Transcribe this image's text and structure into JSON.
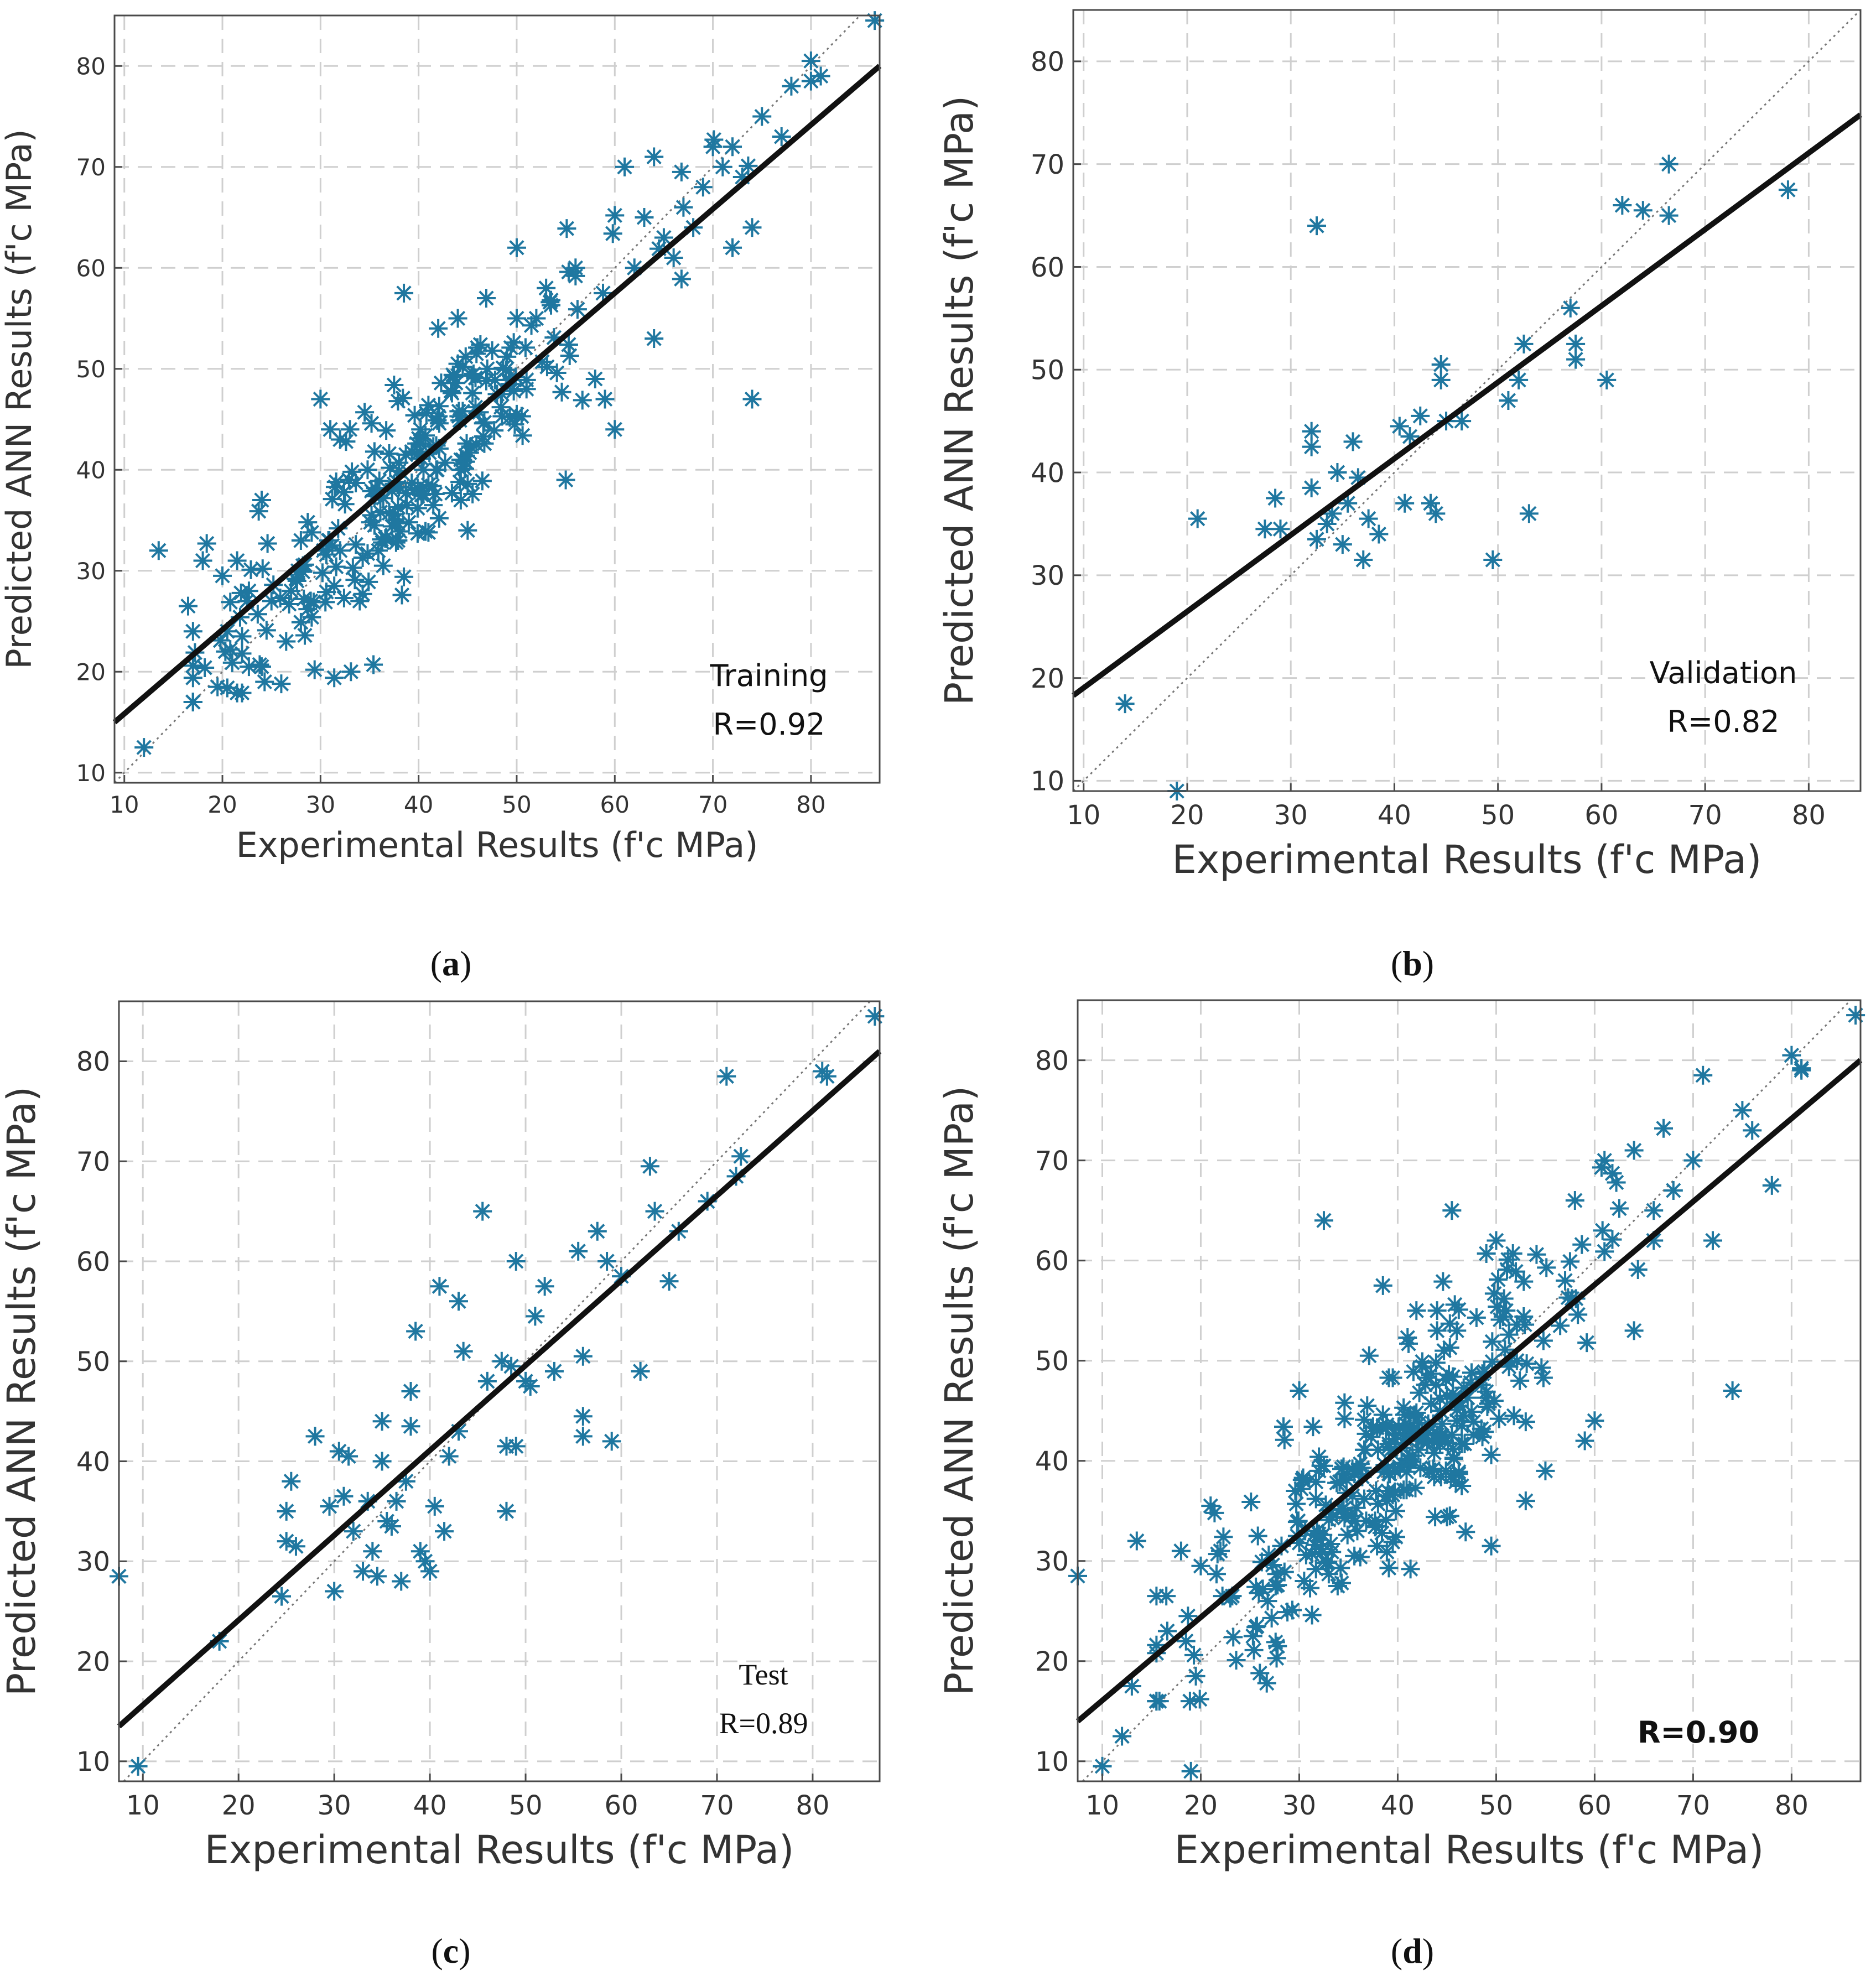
{
  "colors": {
    "marker": "#1f77a0",
    "fit": "#111111",
    "grid": "#cfcfcf",
    "frame": "#4a4a4a"
  },
  "chart_data": [
    {
      "type": "scatter",
      "caption": "a",
      "title": "",
      "xlabel": "Experimental Results (f'c MPa)",
      "ylabel": "Predicted ANN Results (f'c MPa)",
      "xlim": [
        9,
        87
      ],
      "ylim": [
        9,
        85
      ],
      "xticks": [
        10,
        20,
        30,
        40,
        50,
        60,
        70,
        80
      ],
      "yticks": [
        10,
        20,
        30,
        40,
        50,
        60,
        70,
        80
      ],
      "grid": true,
      "annotation": [
        "Training",
        "R=0.92"
      ],
      "annotation_bold": false,
      "fit_line": {
        "x": [
          9,
          87
        ],
        "y": [
          15,
          80
        ]
      },
      "identity_line": true,
      "seed": 11,
      "n_points": 260,
      "x_center": 40,
      "x_sd": 12,
      "scatter_sd": 4.8,
      "points": [
        [
          12,
          12.5
        ],
        [
          13.5,
          32
        ],
        [
          16.5,
          26.5
        ],
        [
          18,
          31
        ],
        [
          19.5,
          18.5
        ],
        [
          20,
          29.5
        ],
        [
          20.5,
          24
        ],
        [
          21.5,
          31
        ],
        [
          22.5,
          27
        ],
        [
          24,
          37
        ],
        [
          25,
          27
        ],
        [
          26,
          18.8
        ],
        [
          27,
          28
        ],
        [
          28,
          33
        ],
        [
          29,
          27
        ],
        [
          30,
          47
        ],
        [
          31,
          44
        ],
        [
          32,
          43
        ],
        [
          33,
          44
        ],
        [
          34,
          27
        ],
        [
          38.5,
          57.5
        ],
        [
          42,
          54
        ],
        [
          44,
          55
        ],
        [
          48,
          47.5
        ],
        [
          50,
          62
        ],
        [
          50,
          55
        ],
        [
          55,
          39
        ],
        [
          58,
          49
        ],
        [
          59,
          47
        ],
        [
          60,
          44
        ],
        [
          61,
          70
        ],
        [
          63,
          65
        ],
        [
          64,
          71
        ],
        [
          64,
          53
        ],
        [
          66,
          61
        ],
        [
          68,
          64
        ],
        [
          70,
          72
        ],
        [
          72,
          62
        ],
        [
          72,
          72
        ],
        [
          74,
          47
        ],
        [
          74,
          64
        ],
        [
          75,
          75
        ],
        [
          77,
          73
        ],
        [
          78,
          78
        ],
        [
          80,
          80.5
        ],
        [
          80,
          78.5
        ],
        [
          81,
          79
        ],
        [
          86.5,
          84.5
        ],
        [
          51,
          48
        ],
        [
          56,
          60
        ],
        [
          45,
          34
        ],
        [
          47,
          50
        ],
        [
          52,
          55
        ],
        [
          53,
          58
        ],
        [
          62,
          60
        ],
        [
          65,
          63
        ],
        [
          67,
          66
        ],
        [
          69,
          68
        ],
        [
          71,
          70
        ],
        [
          73,
          69
        ]
      ]
    },
    {
      "type": "scatter",
      "caption": "b",
      "title": "",
      "xlabel": "Experimental Results (f'c MPa)",
      "ylabel": "Predicted ANN Results (f'c MPa)",
      "xlim": [
        9,
        85
      ],
      "ylim": [
        9,
        85
      ],
      "xticks": [
        10,
        20,
        30,
        40,
        50,
        60,
        70,
        80
      ],
      "yticks": [
        10,
        20,
        30,
        40,
        50,
        60,
        70,
        80
      ],
      "grid": true,
      "annotation": [
        "Validation",
        "R=0.82"
      ],
      "annotation_bold": false,
      "fit_line": {
        "x": [
          9,
          85
        ],
        "y": [
          18.3,
          74.8
        ]
      },
      "identity_line": true,
      "seed": 0,
      "n_points": 0,
      "points": [
        [
          14,
          17.5
        ],
        [
          19,
          9
        ],
        [
          21,
          35.5
        ],
        [
          27.5,
          34.5
        ],
        [
          28.5,
          37.5
        ],
        [
          29,
          34.5
        ],
        [
          32,
          44
        ],
        [
          32,
          42.5
        ],
        [
          32,
          38.5
        ],
        [
          32.5,
          64
        ],
        [
          32.5,
          33.5
        ],
        [
          33.5,
          35
        ],
        [
          34,
          36
        ],
        [
          34.5,
          40
        ],
        [
          35,
          33
        ],
        [
          35.5,
          37
        ],
        [
          36,
          43
        ],
        [
          36.5,
          39.5
        ],
        [
          37,
          31.5
        ],
        [
          37.5,
          35.5
        ],
        [
          38.5,
          34
        ],
        [
          40.5,
          44.5
        ],
        [
          41,
          37
        ],
        [
          41.5,
          43.5
        ],
        [
          42.5,
          45.5
        ],
        [
          43.5,
          37
        ],
        [
          44,
          36
        ],
        [
          44.5,
          49
        ],
        [
          44.5,
          50.5
        ],
        [
          45,
          45
        ],
        [
          46.5,
          45
        ],
        [
          49.5,
          31.5
        ],
        [
          51,
          47
        ],
        [
          52,
          49
        ],
        [
          52.5,
          52.5
        ],
        [
          53,
          36
        ],
        [
          57,
          56
        ],
        [
          57.5,
          51
        ],
        [
          57.5,
          52.5
        ],
        [
          60.5,
          49
        ],
        [
          62,
          66
        ],
        [
          64,
          65.5
        ],
        [
          66.5,
          65
        ],
        [
          66.5,
          70
        ],
        [
          78,
          67.5
        ]
      ]
    },
    {
      "type": "scatter",
      "caption": "c",
      "title": "",
      "xlabel": "Experimental Results (f'c MPa)",
      "ylabel": "Predicted ANN Results (f'c MPa)",
      "xlim": [
        7.5,
        87
      ],
      "ylim": [
        8,
        86
      ],
      "xticks": [
        10,
        20,
        30,
        40,
        50,
        60,
        70,
        80
      ],
      "yticks": [
        10,
        20,
        30,
        40,
        50,
        60,
        70,
        80
      ],
      "grid": true,
      "annotation": [
        "Test",
        "R=0.89"
      ],
      "annotation_bold": false,
      "fit_line": {
        "x": [
          7.5,
          87
        ],
        "y": [
          13.5,
          81
        ]
      },
      "identity_line": true,
      "seed": 0,
      "n_points": 0,
      "points": [
        [
          7.5,
          28.5
        ],
        [
          9.5,
          9.5
        ],
        [
          18,
          22
        ],
        [
          24.5,
          26.5
        ],
        [
          25,
          32
        ],
        [
          25,
          35
        ],
        [
          25.5,
          38
        ],
        [
          26,
          31.5
        ],
        [
          28,
          42.5
        ],
        [
          29.5,
          35.5
        ],
        [
          30,
          27
        ],
        [
          30.5,
          41
        ],
        [
          31,
          36.5
        ],
        [
          31.5,
          40.5
        ],
        [
          32,
          33
        ],
        [
          33,
          29
        ],
        [
          33.5,
          36
        ],
        [
          34,
          31
        ],
        [
          34.5,
          28.5
        ],
        [
          35,
          44
        ],
        [
          35,
          40
        ],
        [
          35.5,
          34
        ],
        [
          36,
          33.5
        ],
        [
          36.5,
          36
        ],
        [
          37,
          28
        ],
        [
          37.5,
          38
        ],
        [
          38,
          47
        ],
        [
          38,
          43.5
        ],
        [
          38.5,
          53
        ],
        [
          39,
          31
        ],
        [
          39.5,
          30
        ],
        [
          40,
          29
        ],
        [
          40.5,
          35.5
        ],
        [
          41,
          57.5
        ],
        [
          41.5,
          33
        ],
        [
          42,
          40.5
        ],
        [
          43,
          56
        ],
        [
          43,
          43
        ],
        [
          43.5,
          51
        ],
        [
          45.5,
          65
        ],
        [
          46,
          48
        ],
        [
          47.5,
          50
        ],
        [
          48,
          35
        ],
        [
          48,
          41.5
        ],
        [
          48.5,
          49.5
        ],
        [
          49,
          60
        ],
        [
          49,
          41.5
        ],
        [
          50,
          48
        ],
        [
          50.5,
          47.5
        ],
        [
          51,
          54.5
        ],
        [
          52,
          57.5
        ],
        [
          53,
          49
        ],
        [
          55.5,
          61
        ],
        [
          56,
          50.5
        ],
        [
          56,
          44.5
        ],
        [
          56,
          42.5
        ],
        [
          57.5,
          63
        ],
        [
          58.5,
          60
        ],
        [
          59,
          42
        ],
        [
          60,
          58.5
        ],
        [
          62,
          49
        ],
        [
          63,
          69.5
        ],
        [
          63.5,
          65
        ],
        [
          65,
          58
        ],
        [
          66,
          63
        ],
        [
          69,
          66
        ],
        [
          71,
          78.5
        ],
        [
          72,
          68.5
        ],
        [
          72.5,
          70.5
        ],
        [
          81,
          79
        ],
        [
          81.5,
          78.5
        ],
        [
          86.5,
          84.5
        ]
      ]
    },
    {
      "type": "scatter",
      "caption": "d",
      "title": "",
      "xlabel": "Experimental Results (f'c MPa)",
      "ylabel": "Predicted ANN Results (f'c MPa)",
      "xlim": [
        7.5,
        87
      ],
      "ylim": [
        8,
        86
      ],
      "xticks": [
        10,
        20,
        30,
        40,
        50,
        60,
        70,
        80
      ],
      "yticks": [
        10,
        20,
        30,
        40,
        50,
        60,
        70,
        80
      ],
      "grid": true,
      "annotation": [
        "R=0.90"
      ],
      "annotation_bold": true,
      "fit_line": {
        "x": [
          7.5,
          87
        ],
        "y": [
          14,
          80
        ]
      },
      "identity_line": true,
      "seed": 29,
      "n_points": 340,
      "x_center": 40,
      "x_sd": 12,
      "scatter_sd": 5.2,
      "points": [
        [
          7.5,
          28.5
        ],
        [
          10,
          9.5
        ],
        [
          12,
          12.5
        ],
        [
          13,
          17.5
        ],
        [
          13.5,
          32
        ],
        [
          16.5,
          26.5
        ],
        [
          18,
          31
        ],
        [
          18.5,
          22
        ],
        [
          19,
          9
        ],
        [
          19.5,
          18.5
        ],
        [
          20,
          29.5
        ],
        [
          21,
          35.5
        ],
        [
          22,
          31
        ],
        [
          26,
          18.8
        ],
        [
          30,
          47
        ],
        [
          32.5,
          64
        ],
        [
          38.5,
          57.5
        ],
        [
          44,
          55
        ],
        [
          45.5,
          65
        ],
        [
          50,
          62
        ],
        [
          49.5,
          31.5
        ],
        [
          53,
          36
        ],
        [
          55,
          39
        ],
        [
          59,
          42
        ],
        [
          60,
          44
        ],
        [
          61,
          70
        ],
        [
          64,
          71
        ],
        [
          64,
          53
        ],
        [
          71,
          78.5
        ],
        [
          72,
          62
        ],
        [
          74,
          47
        ],
        [
          75,
          75
        ],
        [
          78,
          67.5
        ],
        [
          80,
          80.5
        ],
        [
          81,
          79
        ],
        [
          86.5,
          84.5
        ],
        [
          66,
          65
        ],
        [
          68,
          67
        ],
        [
          70,
          70
        ],
        [
          76,
          73
        ]
      ]
    }
  ]
}
